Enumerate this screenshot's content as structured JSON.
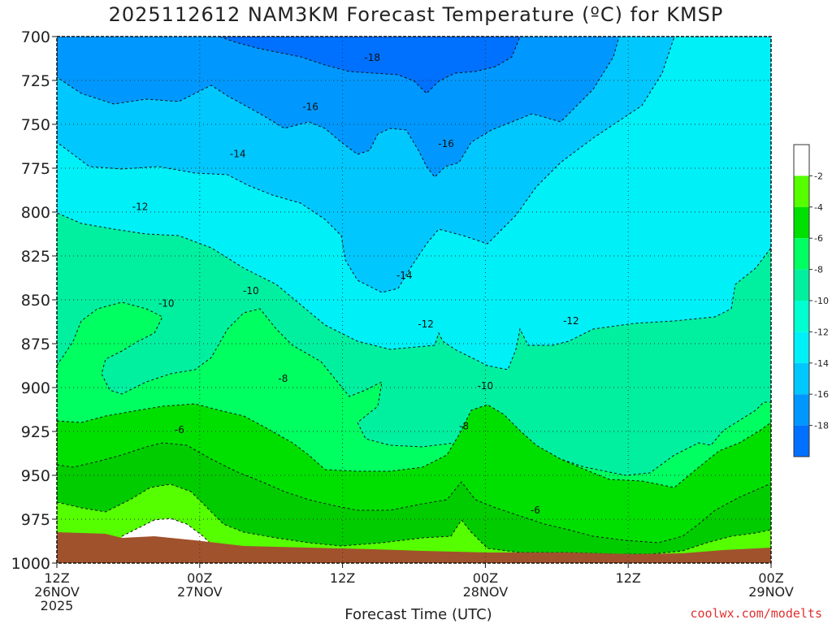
{
  "chart_data": {
    "type": "heatmap",
    "title": "2025112612 NAM3KM Forecast Temperature (ºC) for KMSP",
    "xlabel": "Forecast Time (UTC)",
    "ylabel": "",
    "credit": "coolwx.com/modelts",
    "x_range_hours": [
      0,
      60
    ],
    "y_range_hPa": [
      700,
      1000
    ],
    "y_ticks": [
      "700",
      "725",
      "750",
      "775",
      "800",
      "825",
      "850",
      "875",
      "900",
      "925",
      "950",
      "975",
      "1000"
    ],
    "x_ticks": [
      {
        "hour": 0,
        "lines": [
          "12Z",
          "26NOV",
          "2025"
        ]
      },
      {
        "hour": 12,
        "lines": [
          "00Z",
          "27NOV"
        ]
      },
      {
        "hour": 24,
        "lines": [
          "12Z"
        ]
      },
      {
        "hour": 36,
        "lines": [
          "00Z",
          "28NOV"
        ]
      },
      {
        "hour": 48,
        "lines": [
          "12Z"
        ]
      },
      {
        "hour": 60,
        "lines": [
          "00Z",
          "29NOV"
        ]
      }
    ],
    "grid": true,
    "legend": "right",
    "colorbar_levels": [
      "-2",
      "-4",
      "-6",
      "-8",
      "-10",
      "-12",
      "-14",
      "-16",
      "-18"
    ],
    "colorbar_colors": [
      "#ffffff",
      "#55ff00",
      "#00e000",
      "#00ff60",
      "#00f0a0",
      "#00ffd0",
      "#00f0f8",
      "#00c8ff",
      "#0098ff",
      "#0070ff"
    ],
    "colors": {
      "ground": "#a0522d",
      "contour": "#1a1a1a"
    },
    "contour_labels": [
      {
        "text": "-18",
        "hour": 26.5,
        "p": 712
      },
      {
        "text": "-16",
        "hour": 21.3,
        "p": 740
      },
      {
        "text": "-16",
        "hour": 32.7,
        "p": 761
      },
      {
        "text": "-14",
        "hour": 15.2,
        "p": 767
      },
      {
        "text": "-14",
        "hour": 29.2,
        "p": 836
      },
      {
        "text": "-12",
        "hour": 7.0,
        "p": 797
      },
      {
        "text": "-12",
        "hour": 31.0,
        "p": 864
      },
      {
        "text": "-12",
        "hour": 43.2,
        "p": 862
      },
      {
        "text": "-10",
        "hour": 9.2,
        "p": 852
      },
      {
        "text": "-10",
        "hour": 16.3,
        "p": 845
      },
      {
        "text": "-10",
        "hour": 36.0,
        "p": 899
      },
      {
        "text": "-8",
        "hour": 19.0,
        "p": 895
      },
      {
        "text": "-8",
        "hour": 34.2,
        "p": 922
      },
      {
        "text": "-6",
        "hour": 10.3,
        "p": 924
      },
      {
        "text": "-6",
        "hour": 40.2,
        "p": 970
      }
    ]
  }
}
